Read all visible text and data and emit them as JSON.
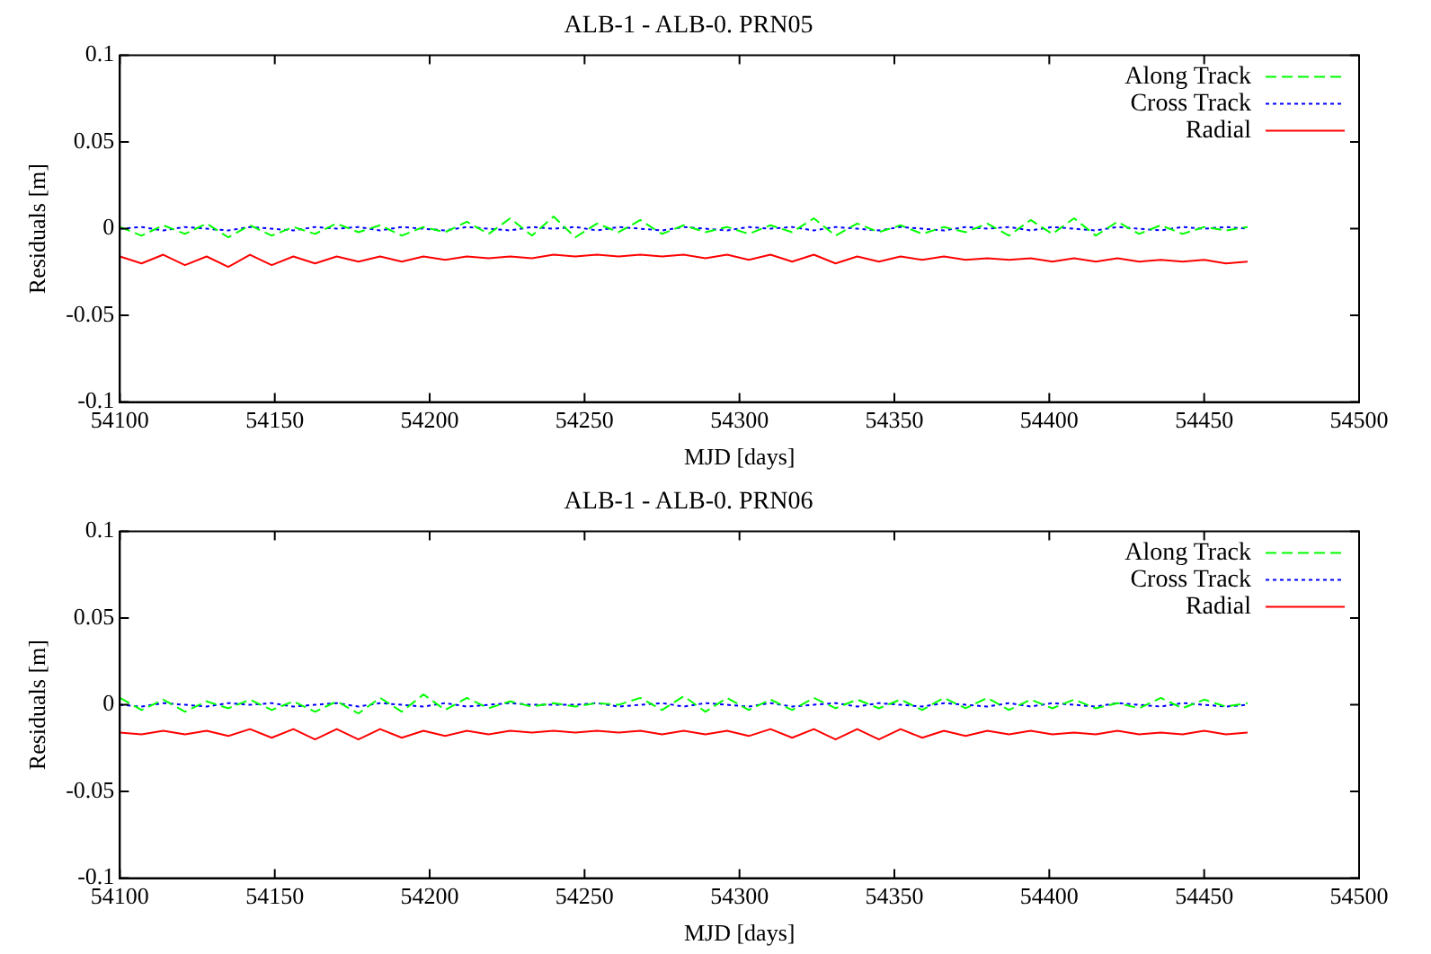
{
  "chart_data": [
    {
      "type": "line",
      "title": "ALB-1 - ALB-0. PRN05",
      "xlabel": "MJD [days]",
      "ylabel": "Residuals [m]",
      "x": [
        54100,
        54107,
        54114,
        54121,
        54128,
        54135,
        54142,
        54149,
        54156,
        54163,
        54170,
        54177,
        54184,
        54191,
        54198,
        54205,
        54212,
        54219,
        54226,
        54233,
        54240,
        54247,
        54254,
        54261,
        54268,
        54275,
        54282,
        54289,
        54296,
        54303,
        54310,
        54317,
        54324,
        54331,
        54338,
        54345,
        54352,
        54359,
        54366,
        54373,
        54380,
        54387,
        54394,
        54401,
        54408,
        54415,
        54422,
        54429,
        54436,
        54443,
        54450,
        54457,
        54464
      ],
      "series": [
        {
          "name": "Along Track",
          "color": "#00ff00",
          "line_style": "dashed",
          "values": [
            0.001,
            -0.004,
            0.002,
            -0.003,
            0.003,
            -0.005,
            0.002,
            -0.004,
            0.001,
            -0.003,
            0.003,
            -0.002,
            0.002,
            -0.004,
            0.001,
            -0.002,
            0.004,
            -0.003,
            0.006,
            -0.004,
            0.007,
            -0.005,
            0.003,
            -0.002,
            0.005,
            -0.003,
            0.002,
            -0.002,
            0.001,
            -0.003,
            0.002,
            -0.002,
            0.006,
            -0.004,
            0.003,
            -0.002,
            0.002,
            -0.003,
            0.001,
            -0.002,
            0.003,
            -0.004,
            0.005,
            -0.003,
            0.006,
            -0.004,
            0.004,
            -0.003,
            0.002,
            -0.003,
            0.001,
            -0.001,
            0.001
          ]
        },
        {
          "name": "Cross Track",
          "color": "#0000ff",
          "line_style": "dotted",
          "values": [
            0,
            0.001,
            -0.001,
            0.001,
            0,
            -0.001,
            0.001,
            0,
            -0.001,
            0.001,
            0,
            0.001,
            -0.001,
            0.001,
            0,
            -0.001,
            0.001,
            0,
            -0.001,
            0.001,
            0,
            0.001,
            -0.001,
            0.001,
            0,
            -0.001,
            0.001,
            0,
            -0.001,
            0.001,
            0,
            0.001,
            -0.001,
            0.001,
            0,
            -0.001,
            0.001,
            0,
            -0.001,
            0.001,
            0,
            0.001,
            -0.001,
            0.001,
            0,
            -0.001,
            0.001,
            0,
            -0.001,
            0.001,
            0,
            0.001,
            0
          ]
        },
        {
          "name": "Radial",
          "color": "#ff0000",
          "line_style": "solid",
          "values": [
            -0.016,
            -0.02,
            -0.015,
            -0.021,
            -0.016,
            -0.022,
            -0.015,
            -0.021,
            -0.016,
            -0.02,
            -0.016,
            -0.019,
            -0.016,
            -0.019,
            -0.016,
            -0.018,
            -0.016,
            -0.017,
            -0.016,
            -0.017,
            -0.015,
            -0.016,
            -0.015,
            -0.016,
            -0.015,
            -0.016,
            -0.015,
            -0.017,
            -0.015,
            -0.018,
            -0.015,
            -0.019,
            -0.015,
            -0.02,
            -0.016,
            -0.019,
            -0.016,
            -0.018,
            -0.016,
            -0.018,
            -0.017,
            -0.018,
            -0.017,
            -0.019,
            -0.017,
            -0.019,
            -0.017,
            -0.019,
            -0.018,
            -0.019,
            -0.018,
            -0.02,
            -0.019
          ]
        }
      ],
      "xlim": [
        54100,
        54500
      ],
      "xticks": [
        54100,
        54150,
        54200,
        54250,
        54300,
        54350,
        54400,
        54450,
        54500
      ],
      "ylim": [
        -0.1,
        0.1
      ],
      "yticks": [
        -0.1,
        -0.05,
        0,
        0.05,
        0.1
      ],
      "grid": false,
      "legend": "top right",
      "marker": "none"
    },
    {
      "type": "line",
      "title": "ALB-1 - ALB-0. PRN06",
      "xlabel": "MJD [days]",
      "ylabel": "Residuals [m]",
      "x": [
        54100,
        54107,
        54114,
        54121,
        54128,
        54135,
        54142,
        54149,
        54156,
        54163,
        54170,
        54177,
        54184,
        54191,
        54198,
        54205,
        54212,
        54219,
        54226,
        54233,
        54240,
        54247,
        54254,
        54261,
        54268,
        54275,
        54282,
        54289,
        54296,
        54303,
        54310,
        54317,
        54324,
        54331,
        54338,
        54345,
        54352,
        54359,
        54366,
        54373,
        54380,
        54387,
        54394,
        54401,
        54408,
        54415,
        54422,
        54429,
        54436,
        54443,
        54450,
        54457,
        54464
      ],
      "series": [
        {
          "name": "Along Track",
          "color": "#00ff00",
          "line_style": "dashed",
          "values": [
            0.004,
            -0.003,
            0.003,
            -0.004,
            0.002,
            -0.002,
            0.003,
            -0.003,
            0.002,
            -0.004,
            0.002,
            -0.005,
            0.004,
            -0.004,
            0.006,
            -0.003,
            0.004,
            -0.002,
            0.002,
            -0.001,
            0.001,
            -0.001,
            0.001,
            0,
            0.004,
            -0.003,
            0.005,
            -0.004,
            0.004,
            -0.003,
            0.003,
            -0.003,
            0.004,
            -0.002,
            0.003,
            -0.002,
            0.003,
            -0.003,
            0.004,
            -0.002,
            0.004,
            -0.003,
            0.003,
            -0.002,
            0.003,
            -0.002,
            0.001,
            -0.002,
            0.004,
            -0.002,
            0.003,
            -0.001,
            0.001
          ]
        },
        {
          "name": "Cross Track",
          "color": "#0000ff",
          "line_style": "dotted",
          "values": [
            0,
            -0.001,
            0.001,
            0,
            -0.001,
            0.001,
            0,
            0.001,
            -0.001,
            0,
            0.001,
            -0.001,
            0.001,
            0,
            -0.001,
            0.001,
            -0.001,
            0,
            0.001,
            0,
            0,
            0,
            0.001,
            -0.001,
            0,
            0.001,
            -0.001,
            0.001,
            0,
            -0.001,
            0.001,
            -0.001,
            0,
            0.001,
            -0.001,
            0.001,
            0,
            -0.001,
            0.001,
            0,
            -0.001,
            0.001,
            -0.001,
            0.001,
            0,
            -0.001,
            0.001,
            0,
            -0.001,
            0.001,
            0,
            -0.001,
            0
          ]
        },
        {
          "name": "Radial",
          "color": "#ff0000",
          "line_style": "solid",
          "values": [
            -0.016,
            -0.017,
            -0.015,
            -0.017,
            -0.015,
            -0.018,
            -0.014,
            -0.019,
            -0.014,
            -0.02,
            -0.014,
            -0.02,
            -0.014,
            -0.019,
            -0.015,
            -0.018,
            -0.015,
            -0.017,
            -0.015,
            -0.016,
            -0.015,
            -0.016,
            -0.015,
            -0.016,
            -0.015,
            -0.017,
            -0.015,
            -0.017,
            -0.015,
            -0.018,
            -0.014,
            -0.019,
            -0.014,
            -0.02,
            -0.014,
            -0.02,
            -0.014,
            -0.019,
            -0.015,
            -0.018,
            -0.015,
            -0.017,
            -0.015,
            -0.017,
            -0.016,
            -0.017,
            -0.015,
            -0.017,
            -0.016,
            -0.017,
            -0.015,
            -0.017,
            -0.016
          ]
        }
      ],
      "xlim": [
        54100,
        54500
      ],
      "xticks": [
        54100,
        54150,
        54200,
        54250,
        54300,
        54350,
        54400,
        54450,
        54500
      ],
      "ylim": [
        -0.1,
        0.1
      ],
      "yticks": [
        -0.1,
        -0.05,
        0,
        0.05,
        0.1
      ],
      "grid": false,
      "legend": "top right",
      "marker": "none"
    }
  ]
}
